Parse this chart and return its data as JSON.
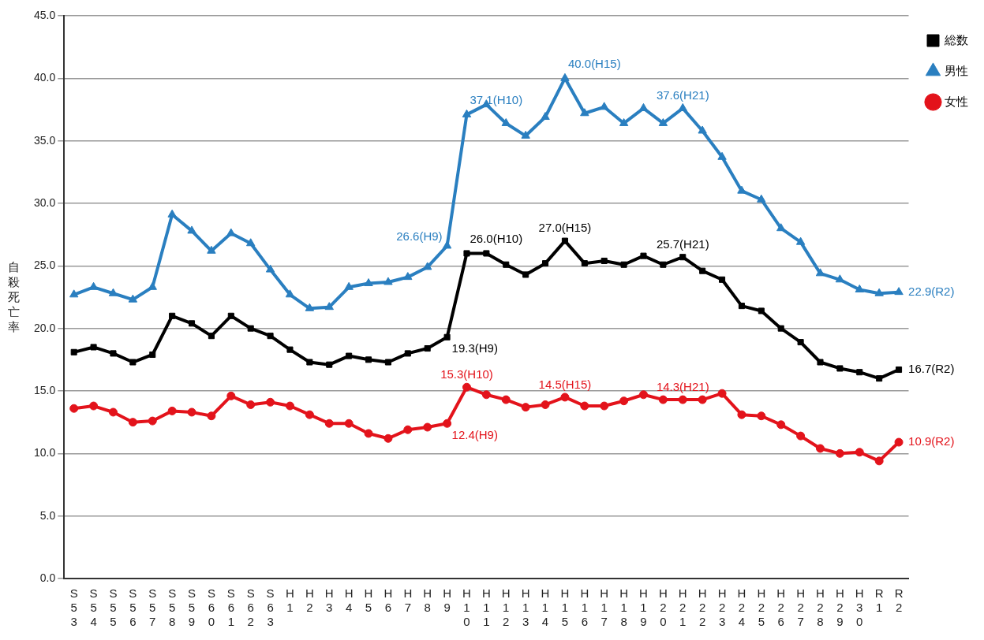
{
  "chart_data": {
    "type": "line",
    "ylabel": "自殺死亡率",
    "categories": [
      "S53",
      "S54",
      "S55",
      "S56",
      "S57",
      "S58",
      "S59",
      "S60",
      "S61",
      "S62",
      "S63",
      "H1",
      "H2",
      "H3",
      "H4",
      "H5",
      "H6",
      "H7",
      "H8",
      "H9",
      "H10",
      "H11",
      "H12",
      "H13",
      "H14",
      "H15",
      "H16",
      "H17",
      "H18",
      "H19",
      "H20",
      "H21",
      "H22",
      "H23",
      "H24",
      "H25",
      "H26",
      "H27",
      "H28",
      "H29",
      "H30",
      "R1",
      "R2"
    ],
    "series": [
      {
        "name": "総数",
        "color": "#000000",
        "marker": "square",
        "values": [
          18.1,
          18.5,
          18.0,
          17.3,
          17.9,
          21.0,
          20.4,
          19.4,
          21.0,
          20.0,
          19.4,
          18.3,
          17.3,
          17.1,
          17.8,
          17.5,
          17.3,
          18.0,
          18.4,
          19.3,
          26.0,
          26.0,
          25.1,
          24.3,
          25.2,
          27.0,
          25.2,
          25.4,
          25.1,
          25.8,
          25.1,
          25.7,
          24.6,
          23.9,
          21.8,
          21.4,
          20.0,
          18.9,
          17.3,
          16.8,
          16.5,
          16.0,
          16.7
        ]
      },
      {
        "name": "男性",
        "color": "#2a7fc0",
        "marker": "triangle",
        "values": [
          22.7,
          23.3,
          22.8,
          22.3,
          23.3,
          29.1,
          27.8,
          26.2,
          27.6,
          26.8,
          24.7,
          22.7,
          21.6,
          21.7,
          23.3,
          23.6,
          23.7,
          24.1,
          24.9,
          26.6,
          37.1,
          37.9,
          36.4,
          35.4,
          36.9,
          40.0,
          37.2,
          37.7,
          36.4,
          37.6,
          36.4,
          37.6,
          35.8,
          33.7,
          31.0,
          30.3,
          28.0,
          26.9,
          24.4,
          23.9,
          23.1,
          22.8,
          22.9
        ]
      },
      {
        "name": "女性",
        "color": "#e3131b",
        "marker": "circle",
        "values": [
          13.6,
          13.8,
          13.3,
          12.5,
          12.6,
          13.4,
          13.3,
          13.0,
          14.6,
          13.9,
          14.1,
          13.8,
          13.1,
          12.4,
          12.4,
          11.6,
          11.2,
          11.9,
          12.1,
          12.4,
          15.3,
          14.7,
          14.3,
          13.7,
          13.9,
          14.5,
          13.8,
          13.8,
          14.2,
          14.7,
          14.3,
          14.3,
          14.3,
          14.8,
          13.1,
          13.0,
          12.3,
          11.4,
          10.4,
          10.0,
          10.1,
          9.4,
          10.9
        ]
      }
    ],
    "ylim": [
      0,
      45
    ],
    "yticks": [
      {
        "value": 0,
        "label": "0.0"
      },
      {
        "value": 5,
        "label": "5.0"
      },
      {
        "value": 10,
        "label": "10.0"
      },
      {
        "value": 15,
        "label": "15.0"
      },
      {
        "value": 20,
        "label": "20.0"
      },
      {
        "value": 25,
        "label": "25.0"
      },
      {
        "value": 30,
        "label": "30.0"
      },
      {
        "value": 35,
        "label": "35.0"
      },
      {
        "value": 40,
        "label": "40.0"
      },
      {
        "value": 45,
        "label": "45.0"
      }
    ],
    "grid": "y",
    "legend": "right",
    "line_style": "solid",
    "annotations": [
      {
        "text": "37.1(H10)",
        "x": "H10",
        "y": 37.1
      },
      {
        "text": "40.0(H15)",
        "x": "H15",
        "y": 40.0
      },
      {
        "text": "37.6(H21)",
        "x": "H21",
        "y": 37.6
      },
      {
        "text": "26.6(H9)",
        "x": "H9",
        "y": 26.6
      },
      {
        "text": "22.9(R2)",
        "x": "R2",
        "y": 22.9
      },
      {
        "text": "26.0(H10)",
        "x": "H10",
        "y": 26.0
      },
      {
        "text": "27.0(H15)",
        "x": "H15",
        "y": 27.0
      },
      {
        "text": "25.7(H21)",
        "x": "H21",
        "y": 25.7
      },
      {
        "text": "19.3(H9)",
        "x": "H9",
        "y": 19.3
      },
      {
        "text": "16.7(R2)",
        "x": "R2",
        "y": 16.7
      },
      {
        "text": "15.3(H10)",
        "x": "H10",
        "y": 15.3
      },
      {
        "text": "14.5(H15)",
        "x": "H15",
        "y": 14.5
      },
      {
        "text": "14.3(H21)",
        "x": "H21",
        "y": 14.3
      },
      {
        "text": "12.4(H9)",
        "x": "H9",
        "y": 12.4
      },
      {
        "text": "10.9(R2)",
        "x": "R2",
        "y": 10.9
      }
    ]
  }
}
